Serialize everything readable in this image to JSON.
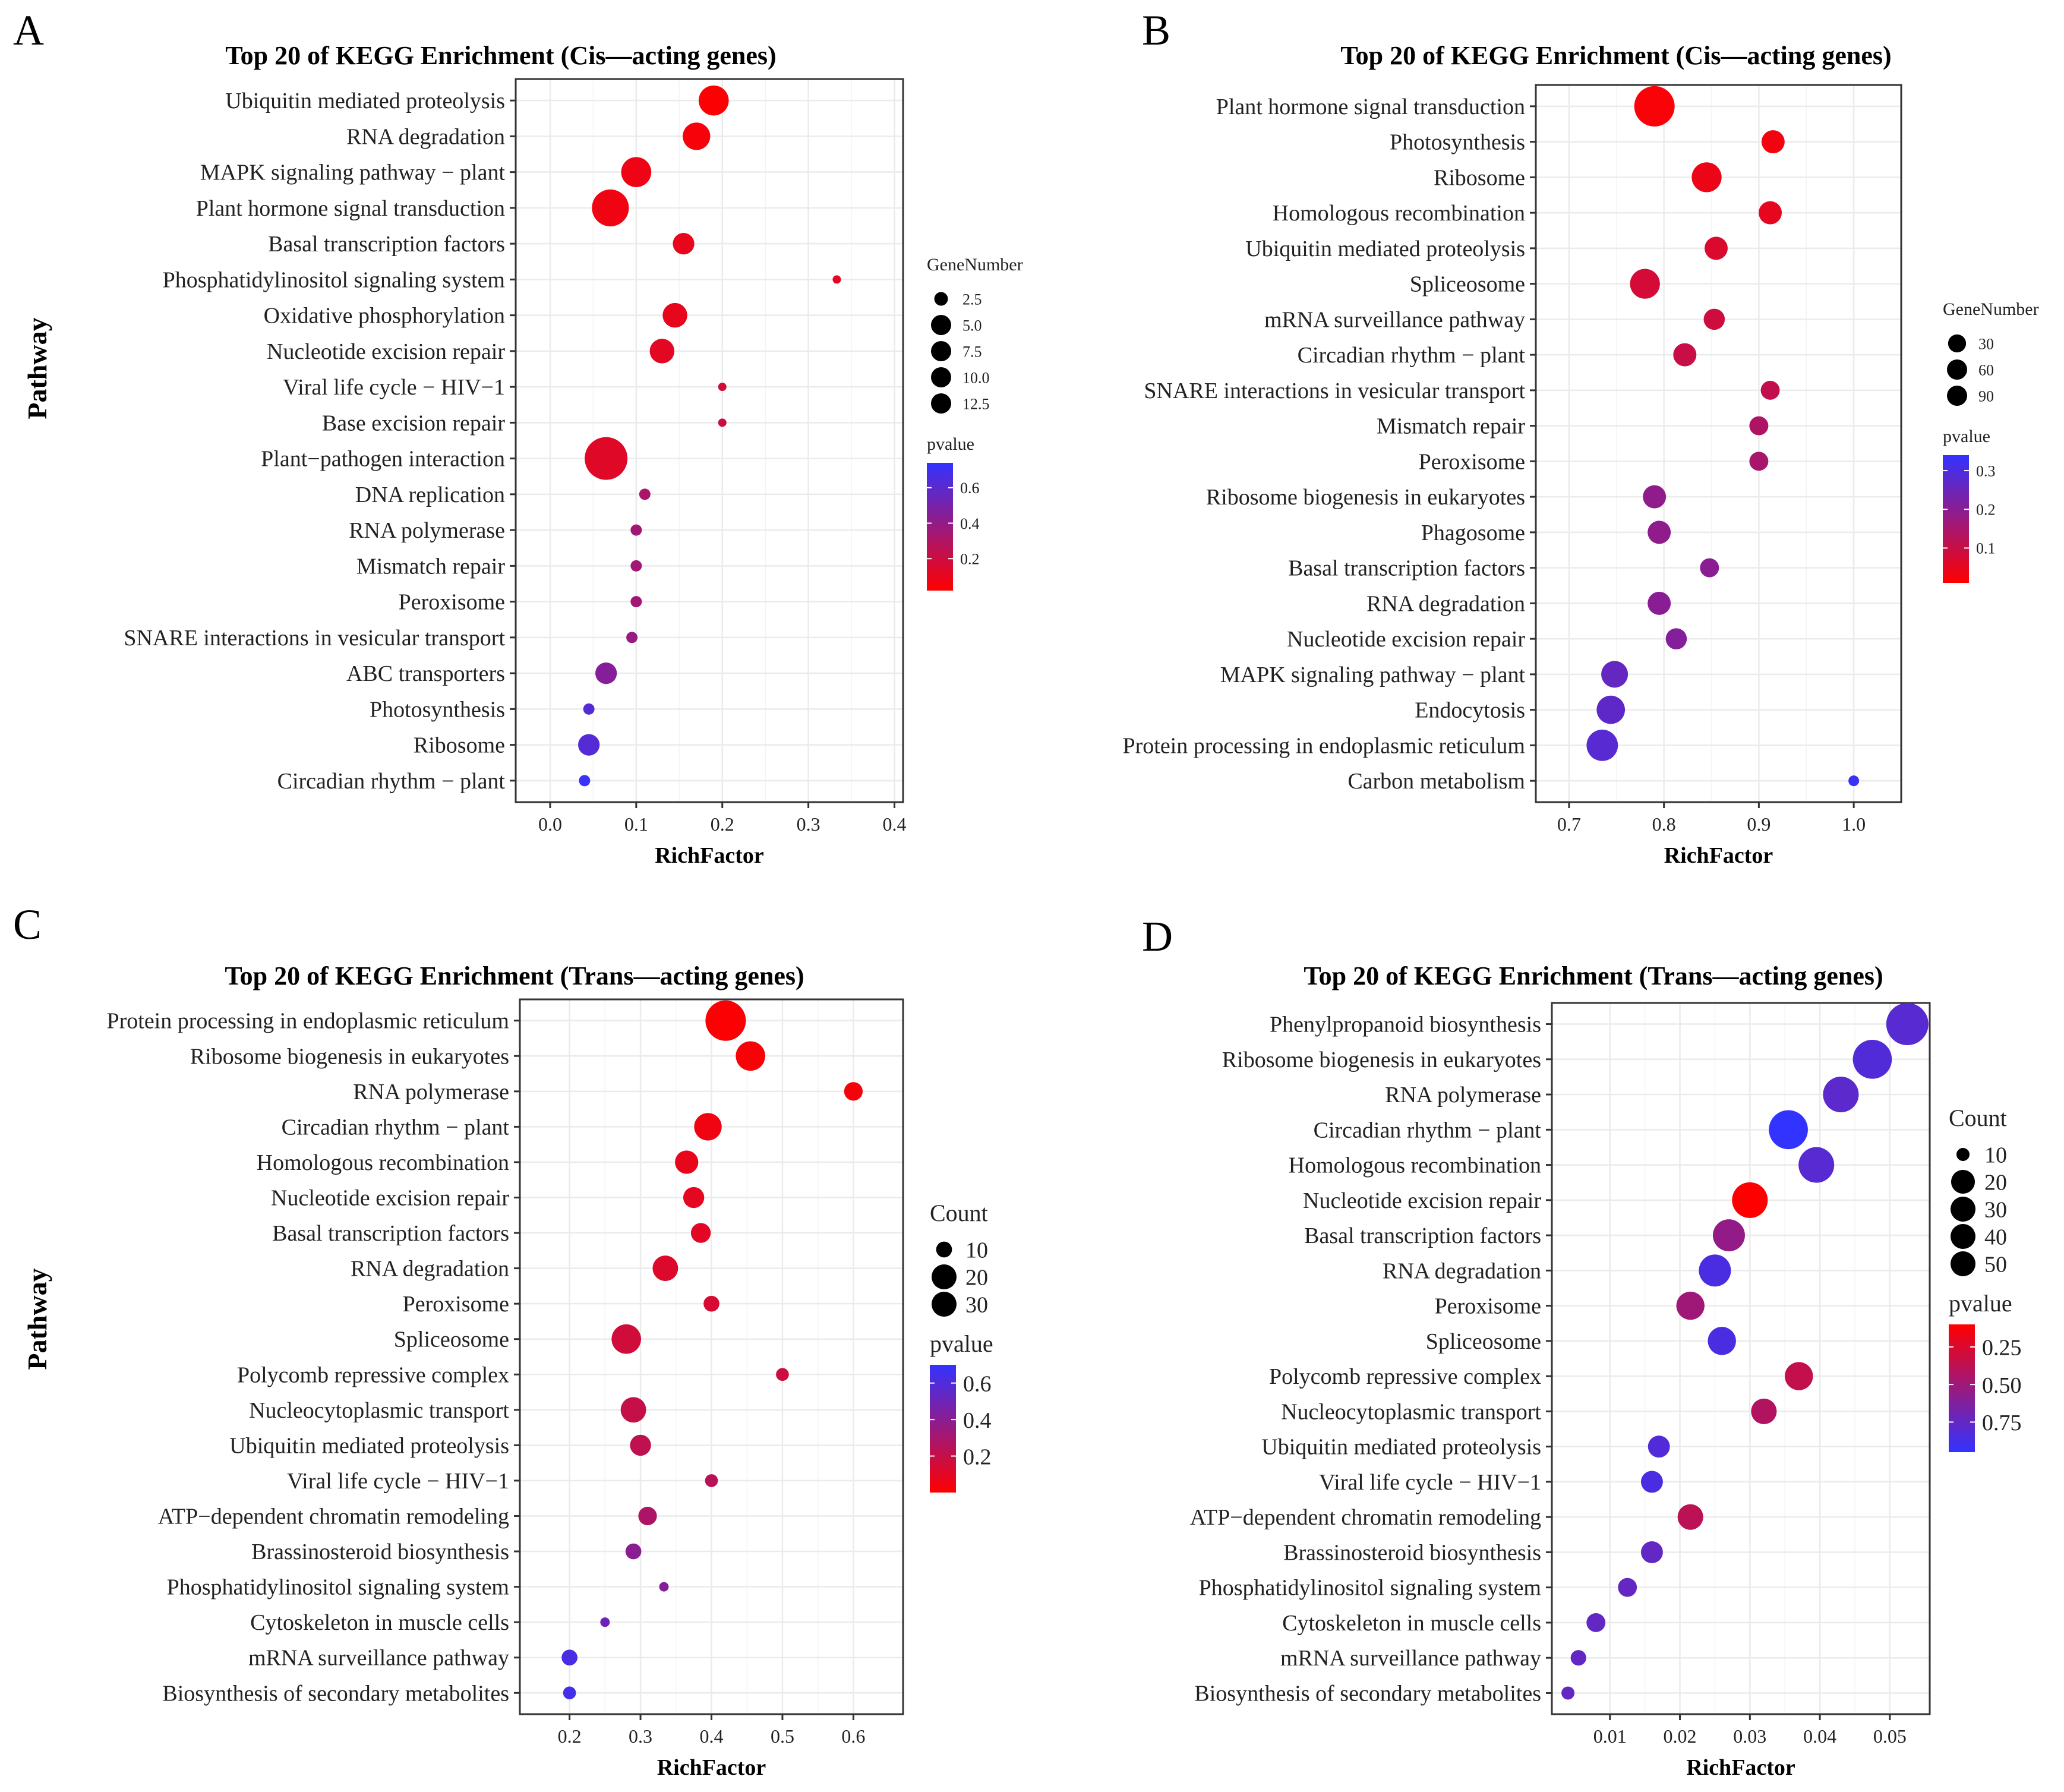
{
  "figure": {
    "panel_labels": [
      "A",
      "B",
      "C",
      "D"
    ]
  },
  "chart_data": [
    {
      "panel": "A",
      "type": "scatter",
      "title": "Top 20 of KEGG Enrichment  (Cis—acting genes)",
      "xlabel": "RichFactor",
      "ylabel": "Pathway",
      "xlim": [
        -0.04,
        0.41
      ],
      "xticks": [
        0.0,
        0.1,
        0.2,
        0.3,
        0.4
      ],
      "xtick_labels": [
        "0.0",
        "0.1",
        "0.2",
        "0.3",
        "0.4"
      ],
      "size_legend": {
        "title": "GeneNumber",
        "labels": [
          "2.5",
          "5.0",
          "7.5",
          "10.0",
          "12.5"
        ],
        "values": [
          2.5,
          5.0,
          7.5,
          10.0,
          12.5
        ]
      },
      "color_legend": {
        "title": "pvalue",
        "labels": [
          "0.6",
          "0.4",
          "0.2"
        ],
        "values": [
          0.6,
          0.4,
          0.2
        ],
        "range": [
          0.02,
          0.74
        ],
        "low_color": "#ff0000",
        "high_color": "#3333ff",
        "gradient_reversed": false
      },
      "pathways": [
        "Ubiquitin mediated proteolysis",
        "RNA degradation",
        "MAPK signaling pathway − plant",
        "Plant hormone signal transduction",
        "Basal transcription factors",
        "Phosphatidylinositol signaling system",
        "Oxidative phosphorylation",
        "Nucleotide excision repair",
        "Viral life cycle − HIV−1",
        "Base excision repair",
        "Plant−pathogen interaction",
        "DNA replication",
        "RNA polymerase",
        "Mismatch repair",
        "Peroxisome",
        "SNARE interactions in vesicular transport",
        "ABC transporters",
        "Photosynthesis",
        "Ribosome",
        "Circadian rhythm − plant"
      ],
      "rich_factor": [
        0.19,
        0.17,
        0.1,
        0.07,
        0.155,
        0.333,
        0.145,
        0.13,
        0.2,
        0.2,
        0.065,
        0.11,
        0.1,
        0.1,
        0.1,
        0.095,
        0.065,
        0.045,
        0.045,
        0.04
      ],
      "gene_number": [
        7,
        6,
        7,
        10,
        4,
        1,
        5,
        5,
        1,
        1,
        13,
        1.5,
        1.5,
        1.5,
        1.5,
        1.5,
        4,
        1.5,
        4,
        1.5
      ],
      "pvalue": [
        0.03,
        0.05,
        0.08,
        0.07,
        0.1,
        0.12,
        0.1,
        0.12,
        0.18,
        0.2,
        0.13,
        0.32,
        0.35,
        0.35,
        0.35,
        0.38,
        0.45,
        0.62,
        0.62,
        0.72
      ]
    },
    {
      "panel": "B",
      "type": "scatter",
      "title": "Top 20 of KEGG Enrichment (Cis—acting genes)",
      "xlabel": "RichFactor",
      "ylabel": "",
      "xlim": [
        0.665,
        1.05
      ],
      "xticks": [
        0.7,
        0.8,
        0.9,
        1.0
      ],
      "xtick_labels": [
        "0.7",
        "0.8",
        "0.9",
        "1.0"
      ],
      "size_legend": {
        "title": "GeneNumber",
        "labels": [
          "30",
          "60",
          "90"
        ],
        "values": [
          30,
          60,
          90
        ]
      },
      "color_legend": {
        "title": "pvalue",
        "labels": [
          "0.3",
          "0.2",
          "0.1"
        ],
        "values": [
          0.3,
          0.2,
          0.1
        ],
        "range": [
          0.01,
          0.34
        ],
        "low_color": "#ff0000",
        "high_color": "#3333ff",
        "gradient_reversed": false
      },
      "pathways": [
        "Plant hormone signal transduction",
        "Photosynthesis",
        "Ribosome",
        "Homologous recombination",
        "Ubiquitin mediated proteolysis",
        "Spliceosome",
        "mRNA surveillance pathway",
        "Circadian rhythm − plant",
        "SNARE interactions in vesicular transport",
        "Mismatch repair",
        "Peroxisome",
        "Ribosome biogenesis in eukaryotes",
        "Phagosome",
        "Basal transcription factors",
        "RNA degradation",
        "Nucleotide excision repair",
        "MAPK signaling pathway − plant",
        "Endocytosis",
        "Protein processing in endoplasmic reticulum",
        "Carbon metabolism"
      ],
      "rich_factor": [
        0.79,
        0.915,
        0.845,
        0.912,
        0.855,
        0.78,
        0.853,
        0.822,
        0.912,
        0.9,
        0.9,
        0.79,
        0.795,
        0.848,
        0.795,
        0.813,
        0.748,
        0.744,
        0.735,
        1.0
      ],
      "gene_number": [
        95,
        35,
        55,
        35,
        35,
        55,
        30,
        35,
        25,
        25,
        25,
        35,
        35,
        25,
        35,
        30,
        45,
        50,
        60,
        10
      ],
      "pvalue": [
        0.02,
        0.03,
        0.04,
        0.05,
        0.07,
        0.08,
        0.09,
        0.1,
        0.11,
        0.14,
        0.15,
        0.19,
        0.19,
        0.2,
        0.2,
        0.21,
        0.26,
        0.27,
        0.28,
        0.33
      ]
    },
    {
      "panel": "C",
      "type": "scatter",
      "title": "Top 20 of KEGG Enrichment (Trans—acting genes)",
      "xlabel": "RichFactor",
      "ylabel": "Pathway",
      "xlim": [
        0.13,
        0.67
      ],
      "xticks": [
        0.2,
        0.3,
        0.4,
        0.5,
        0.6
      ],
      "xtick_labels": [
        "0.2",
        "0.3",
        "0.4",
        "0.5",
        "0.6"
      ],
      "size_legend": {
        "title": "Count",
        "labels": [
          "10",
          "20",
          "30"
        ],
        "values": [
          10,
          20,
          30
        ]
      },
      "color_legend": {
        "title": "pvalue",
        "labels": [
          "0.6",
          "0.4",
          "0.2"
        ],
        "values": [
          0.6,
          0.4,
          0.2
        ],
        "range": [
          0.0,
          0.7
        ],
        "low_color": "#ff0000",
        "high_color": "#3333ff",
        "gradient_reversed": false
      },
      "pathways": [
        "Protein processing in endoplasmic reticulum",
        "Ribosome biogenesis in eukaryotes",
        "RNA polymerase",
        "Circadian rhythm − plant",
        "Homologous recombination",
        "Nucleotide excision repair",
        "Basal transcription factors",
        "RNA degradation",
        "Peroxisome",
        "Spliceosome",
        "Polycomb repressive complex",
        "Nucleocytoplasmic transport",
        "Ubiquitin mediated proteolysis",
        "Viral life cycle − HIV−1",
        "ATP−dependent chromatin remodeling",
        "Brassinosteroid biosynthesis",
        "Phosphatidylinositol signaling system",
        "Cytoskeleton in muscle cells",
        "mRNA surveillance pathway",
        "Biosynthesis of secondary metabolites"
      ],
      "rich_factor": [
        0.42,
        0.455,
        0.6,
        0.395,
        0.365,
        0.375,
        0.385,
        0.335,
        0.4,
        0.28,
        0.5,
        0.29,
        0.3,
        0.4,
        0.31,
        0.29,
        0.333,
        0.25,
        0.2,
        0.2
      ],
      "gene_number": [
        35,
        22,
        12,
        20,
        16,
        14,
        13,
        18,
        10,
        22,
        8,
        18,
        14,
        8,
        12,
        10,
        6,
        6,
        10,
        8
      ],
      "pvalue": [
        0.01,
        0.02,
        0.03,
        0.05,
        0.08,
        0.09,
        0.1,
        0.12,
        0.14,
        0.16,
        0.18,
        0.2,
        0.22,
        0.24,
        0.28,
        0.4,
        0.42,
        0.5,
        0.62,
        0.64
      ]
    },
    {
      "panel": "D",
      "type": "scatter",
      "title": "Top 20 of KEGG Enrichment (Trans—acting genes)",
      "xlabel": "RichFactor",
      "ylabel": "",
      "xlim": [
        0.0017,
        0.0557
      ],
      "xticks": [
        0.01,
        0.02,
        0.03,
        0.04,
        0.05
      ],
      "xtick_labels": [
        "0.01",
        "0.02",
        "0.03",
        "0.04",
        "0.05"
      ],
      "size_legend": {
        "title": "Count",
        "labels": [
          "10",
          "20",
          "30",
          "40",
          "50"
        ],
        "values": [
          10,
          20,
          30,
          40,
          50
        ]
      },
      "color_legend": {
        "title": "pvalue",
        "labels": [
          "0.25",
          "0.50",
          "0.75"
        ],
        "values": [
          0.25,
          0.5,
          0.75
        ],
        "range": [
          0.1,
          0.95
        ],
        "low_color": "#ff0000",
        "high_color": "#3333ff",
        "gradient_reversed": true
      },
      "pathways": [
        "Phenylpropanoid biosynthesis",
        "Ribosome biogenesis in eukaryotes",
        "RNA polymerase",
        "Circadian rhythm − plant",
        "Homologous recombination",
        "Nucleotide excision repair",
        "Basal transcription factors",
        "RNA degradation",
        "Peroxisome",
        "Spliceosome",
        "Polycomb repressive complex",
        "Nucleocytoplasmic transport",
        "Ubiquitin mediated proteolysis",
        "Viral life cycle − HIV−1",
        "ATP−dependent chromatin remodeling",
        "Brassinosteroid biosynthesis",
        "Phosphatidylinositol signaling system",
        "Cytoskeleton in muscle cells",
        "mRNA surveillance pathway",
        "Biosynthesis of secondary metabolites"
      ],
      "rich_factor": [
        0.0525,
        0.0475,
        0.043,
        0.0355,
        0.0395,
        0.03,
        0.027,
        0.025,
        0.0215,
        0.026,
        0.037,
        0.032,
        0.017,
        0.016,
        0.0215,
        0.016,
        0.0125,
        0.008,
        0.0055,
        0.004
      ],
      "gene_number": [
        45,
        40,
        35,
        40,
        35,
        35,
        30,
        30,
        25,
        25,
        25,
        22,
        18,
        18,
        22,
        18,
        15,
        15,
        12,
        10
      ],
      "pvalue": [
        0.8,
        0.82,
        0.78,
        0.98,
        0.8,
        0.1,
        0.55,
        0.85,
        0.5,
        0.85,
        0.35,
        0.42,
        0.82,
        0.85,
        0.38,
        0.75,
        0.75,
        0.75,
        0.75,
        0.75
      ]
    }
  ]
}
